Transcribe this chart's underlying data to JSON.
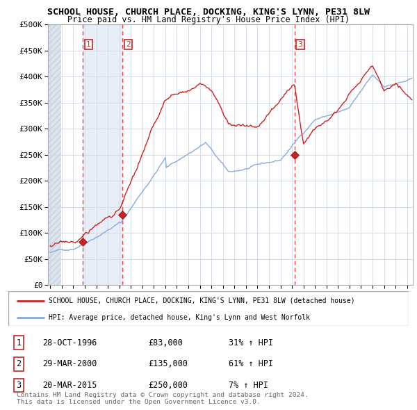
{
  "title": "SCHOOL HOUSE, CHURCH PLACE, DOCKING, KING'S LYNN, PE31 8LW",
  "subtitle": "Price paid vs. HM Land Registry's House Price Index (HPI)",
  "ylim": [
    0,
    500000
  ],
  "yticks": [
    0,
    50000,
    100000,
    150000,
    200000,
    250000,
    300000,
    350000,
    400000,
    450000,
    500000
  ],
  "ytick_labels": [
    "£0",
    "£50K",
    "£100K",
    "£150K",
    "£200K",
    "£250K",
    "£300K",
    "£350K",
    "£400K",
    "£450K",
    "£500K"
  ],
  "xlim_start": 1993.8,
  "xlim_end": 2025.5,
  "xticks": [
    1994,
    1995,
    1996,
    1997,
    1998,
    1999,
    2000,
    2001,
    2002,
    2003,
    2004,
    2005,
    2006,
    2007,
    2008,
    2009,
    2010,
    2011,
    2012,
    2013,
    2014,
    2015,
    2016,
    2017,
    2018,
    2019,
    2020,
    2021,
    2022,
    2023,
    2024,
    2025
  ],
  "plot_bg_color": "#ffffff",
  "hatch_bg_color": "#e8eaf0",
  "grid_color": "#d0d8e8",
  "red_line_color": "#cc2222",
  "blue_line_color": "#88aadd",
  "sale_marker_color": "#cc2222",
  "dashed_vline_color": "#ee4444",
  "vline_bg_color": "#dde8f5",
  "sale_events": [
    {
      "year": 1996.83,
      "price": 83000,
      "label": "1"
    },
    {
      "year": 2000.25,
      "price": 135000,
      "label": "2"
    },
    {
      "year": 2015.22,
      "price": 250000,
      "label": "3"
    }
  ],
  "legend_red_label": "SCHOOL HOUSE, CHURCH PLACE, DOCKING, KING'S LYNN, PE31 8LW (detached house)",
  "legend_blue_label": "HPI: Average price, detached house, King's Lynn and West Norfolk",
  "table_rows": [
    {
      "num": "1",
      "date": "28-OCT-1996",
      "price": "£83,000",
      "hpi": "31% ↑ HPI"
    },
    {
      "num": "2",
      "date": "29-MAR-2000",
      "price": "£135,000",
      "hpi": "61% ↑ HPI"
    },
    {
      "num": "3",
      "date": "20-MAR-2015",
      "price": "£250,000",
      "hpi": "7% ↑ HPI"
    }
  ],
  "footnote": "Contains HM Land Registry data © Crown copyright and database right 2024.\nThis data is licensed under the Open Government Licence v3.0."
}
